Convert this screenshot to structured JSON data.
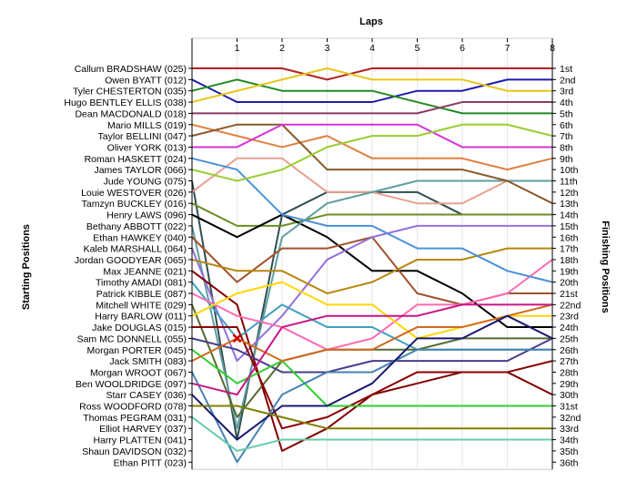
{
  "chart_data": {
    "type": "line",
    "title": "",
    "xlabel": "Laps",
    "ylabel_left": "Starting Positions",
    "ylabel_right": "Finishing Positions",
    "x": [
      0,
      1,
      2,
      3,
      4,
      5,
      6,
      7,
      8
    ],
    "x_ticks": [
      "1",
      "2",
      "3",
      "4",
      "5",
      "6",
      "7",
      "8"
    ],
    "ylim": [
      1,
      36
    ],
    "y_inverted": true,
    "finishing_labels": [
      "1st",
      "2nd",
      "3rd",
      "4th",
      "5th",
      "6th",
      "7th",
      "8th",
      "9th",
      "10th",
      "11th",
      "12th",
      "13th",
      "14th",
      "15th",
      "16th",
      "17th",
      "18th",
      "19th",
      "20th",
      "21st",
      "22nd",
      "23rd",
      "24th",
      "25th",
      "26th",
      "27th",
      "28th",
      "29th",
      "30th",
      "31st",
      "32nd",
      "33rd",
      "34th",
      "35th",
      "36th"
    ],
    "drivers": [
      {
        "name": "Callum BRADSHAW (025)",
        "color": "#b22222",
        "positions": [
          1,
          1,
          1,
          2,
          1,
          1,
          1,
          1,
          1
        ]
      },
      {
        "name": "Owen BYATT (012)",
        "color": "#1c1caa",
        "positions": [
          2,
          4,
          4,
          4,
          4,
          3,
          3,
          2,
          2
        ]
      },
      {
        "name": "Tyler CHESTERTON (035)",
        "color": "#228b22",
        "positions": [
          3,
          2,
          3,
          3,
          3,
          4,
          5,
          5,
          5
        ]
      },
      {
        "name": "Hugo BENTLEY ELLIS (038)",
        "color": "#e6c619",
        "positions": [
          4,
          3,
          2,
          1,
          2,
          2,
          2,
          3,
          3
        ]
      },
      {
        "name": "Dean MACDONALD (018)",
        "color": "#8b3a62",
        "positions": [
          5,
          5,
          5,
          5,
          5,
          5,
          4,
          4,
          4
        ]
      },
      {
        "name": "Mario MILLS (019)",
        "color": "#e08040",
        "positions": [
          6,
          7,
          8,
          7,
          9,
          9,
          9,
          10,
          9
        ]
      },
      {
        "name": "Taylor BELLINI (047)",
        "color": "#8b5a2b",
        "positions": [
          7,
          6,
          6,
          10,
          10,
          10,
          10,
          11,
          13
        ]
      },
      {
        "name": "Oliver YORK (013)",
        "color": "#d633d6",
        "positions": [
          8,
          8,
          6,
          6,
          6,
          6,
          8,
          8,
          8
        ]
      },
      {
        "name": "Roman HASKETT (024)",
        "color": "#4a90d9",
        "positions": [
          9,
          10,
          14,
          15,
          15,
          17,
          17,
          19,
          20
        ]
      },
      {
        "name": "James TAYLOR (066)",
        "color": "#9acd32",
        "positions": [
          10,
          11,
          10,
          8,
          7,
          7,
          6,
          6,
          7
        ]
      }
    ]
  },
  "starting_labels": [
    "Callum BRADSHAW (025)",
    "Owen BYATT (012)",
    "Tyler CHESTERTON (035)",
    "Hugo BENTLEY ELLIS (038)",
    "Dean MACDONALD (018)",
    "Mario MILLS (019)",
    "Taylor BELLINI (047)",
    "Oliver YORK (013)",
    "Roman HASKETT (024)",
    "James TAYLOR (066)",
    "Jude YOUNG (075)",
    "Louie WESTOVER (026)",
    "Tamzyn BUCKLEY (016)",
    "Henry LAWS (096)",
    "Bethany ABBOTT (022)",
    "Ethan HAWKEY (040)",
    "Kaleb MARSHALL (064)",
    "Jordan GOODYEAR (065)",
    "Max JEANNE (021)",
    "Timothy AMADI (081)",
    "Patrick KIBBLE (087)",
    "Mitchell WHITE (029)",
    "Harry BARLOW (011)",
    "Jake DOUGLAS (015)",
    "Sam MC DONNELL (055)",
    "Morgan PORTER (045)",
    "Jack SMITH (083)",
    "Morgan WROOT (067)",
    "Ben WOOLDRIDGE (097)",
    "Starr CASEY (036)",
    "Ross WOODFORD (078)",
    "Thomas PEGRAM (031)",
    "Elliot HARVEY (037)",
    "Harry PLATTEN (041)",
    "Shaun DAVIDSON (032)",
    "Ethan PITT (023)"
  ],
  "extra_series": [
    {
      "color": "#2f4f4f",
      "positions": [
        11,
        34,
        14,
        12,
        12,
        12,
        14,
        14,
        14
      ]
    },
    {
      "color": "#e8a090",
      "positions": [
        12,
        9,
        9,
        12,
        12,
        13,
        13,
        11,
        11
      ]
    },
    {
      "color": "#6b8e23",
      "positions": [
        13,
        15,
        15,
        14,
        14,
        14,
        14,
        14,
        14
      ]
    },
    {
      "color": "#000000",
      "positions": [
        14,
        16,
        14,
        16,
        19,
        19,
        21,
        24,
        24
      ]
    },
    {
      "color": "#5f9ea0",
      "positions": [
        15,
        33,
        16,
        13,
        12,
        11,
        11,
        11,
        11
      ]
    },
    {
      "color": "#a0522d",
      "positions": [
        16,
        20,
        17,
        17,
        16,
        21,
        22,
        21,
        21
      ]
    },
    {
      "color": "#9370db",
      "positions": [
        17,
        27,
        23,
        18,
        16,
        15,
        15,
        15,
        15
      ]
    },
    {
      "color": "#b8860b",
      "positions": [
        18,
        19,
        19,
        21,
        20,
        18,
        18,
        17,
        17
      ]
    },
    {
      "color": "#800000",
      "positions": [
        19,
        22,
        35,
        33,
        30,
        29,
        28,
        28,
        30
      ]
    },
    {
      "color": "#40a0c0",
      "positions": [
        20,
        25,
        22,
        24,
        24,
        26,
        26,
        26,
        26
      ]
    },
    {
      "color": "#ff69b4",
      "positions": [
        21,
        23,
        24,
        26,
        25,
        22,
        22,
        21,
        18
      ]
    },
    {
      "color": "#556b2f",
      "positions": [
        22,
        32,
        27,
        26,
        26,
        26,
        25,
        25,
        25
      ]
    },
    {
      "color": "#ffd700",
      "positions": [
        23,
        21,
        20,
        22,
        22,
        25,
        24,
        23,
        23
      ]
    },
    {
      "color": "#8b0000",
      "positions": [
        24,
        24,
        33,
        32,
        30,
        28,
        28,
        28,
        27
      ]
    },
    {
      "color": "#483d8b",
      "positions": [
        25,
        26,
        28,
        28,
        27,
        27,
        27,
        27,
        25
      ]
    },
    {
      "color": "#32cd32",
      "positions": [
        26,
        29,
        27,
        31,
        31,
        31,
        31,
        31,
        31
      ]
    },
    {
      "color": "#d2691e",
      "positions": [
        27,
        25,
        27,
        26,
        26,
        24,
        24,
        23,
        22
      ]
    },
    {
      "color": "#4682b4",
      "positions": [
        28,
        36,
        30,
        28,
        28,
        26,
        26,
        26,
        26
      ]
    },
    {
      "color": "#c71585",
      "positions": [
        29,
        30,
        24,
        23,
        23,
        23,
        22,
        22,
        22
      ]
    },
    {
      "color": "#191970",
      "positions": [
        30,
        34,
        31,
        31,
        29,
        25,
        25,
        23,
        25
      ]
    },
    {
      "color": "#808000",
      "positions": [
        31,
        31,
        32,
        33,
        33,
        33,
        33,
        33,
        33
      ]
    },
    {
      "color": "#66cdaa",
      "positions": [
        32,
        35,
        34,
        34,
        34,
        34,
        34,
        34,
        34
      ]
    }
  ]
}
